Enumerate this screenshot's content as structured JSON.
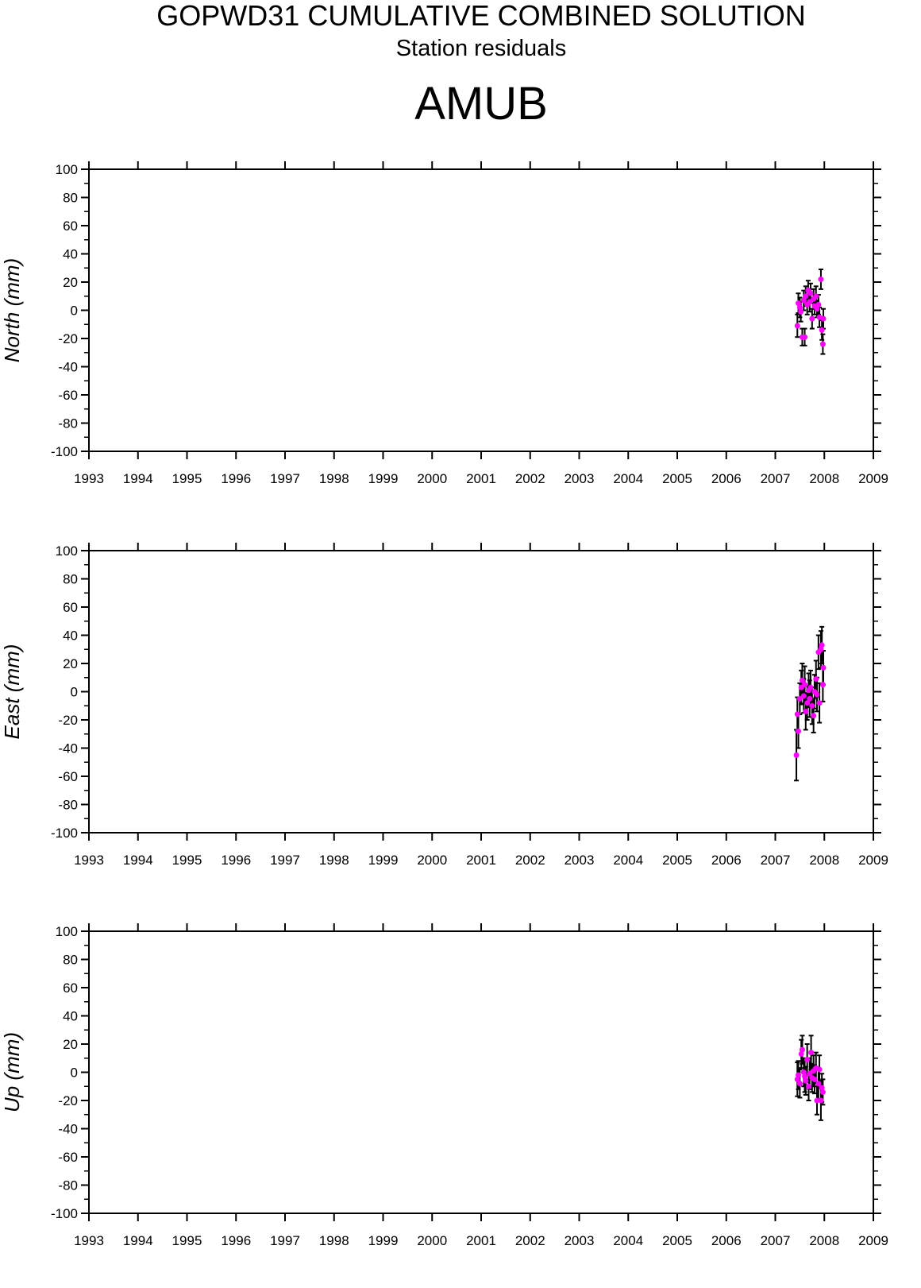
{
  "header": {
    "title": "GOPWD31 CUMULATIVE COMBINED SOLUTION",
    "subtitle": "Station residuals",
    "station": "AMUB"
  },
  "chart_data": [
    {
      "type": "scatter",
      "ylabel": "North (mm)",
      "color": "#ff00ff",
      "error_color": "#000000",
      "xlim": [
        1993,
        2009
      ],
      "xticks": [
        1993,
        1994,
        1995,
        1996,
        1997,
        1998,
        1999,
        2000,
        2001,
        2002,
        2003,
        2004,
        2005,
        2006,
        2007,
        2008,
        2009
      ],
      "ylim": [
        -100,
        100
      ],
      "yticks": [
        -100,
        -80,
        -60,
        -40,
        -20,
        0,
        20,
        40,
        60,
        80,
        100
      ],
      "x": [
        2007.45,
        2007.47,
        2007.5,
        2007.52,
        2007.55,
        2007.58,
        2007.6,
        2007.62,
        2007.65,
        2007.67,
        2007.7,
        2007.72,
        2007.75,
        2007.78,
        2007.8,
        2007.83,
        2007.85,
        2007.88,
        2007.9,
        2007.93,
        2007.95,
        2007.97,
        2007.98
      ],
      "values": [
        -11,
        5,
        2,
        -1,
        -19,
        7,
        -19,
        10,
        4,
        14,
        6,
        12,
        -6,
        8,
        3,
        10,
        1,
        4,
        -5,
        22,
        -14,
        -24,
        -6
      ],
      "errors": [
        8,
        7,
        7,
        7,
        6,
        7,
        6,
        7,
        7,
        7,
        7,
        7,
        7,
        7,
        6,
        7,
        6,
        7,
        7,
        7,
        7,
        7,
        7
      ]
    },
    {
      "type": "scatter",
      "ylabel": "East (mm)",
      "color": "#ff00ff",
      "error_color": "#000000",
      "xlim": [
        1993,
        2009
      ],
      "xticks": [
        1993,
        1994,
        1995,
        1996,
        1997,
        1998,
        1999,
        2000,
        2001,
        2002,
        2003,
        2004,
        2005,
        2006,
        2007,
        2008,
        2009
      ],
      "ylim": [
        -100,
        100
      ],
      "yticks": [
        -100,
        -80,
        -60,
        -40,
        -20,
        0,
        20,
        40,
        60,
        80,
        100
      ],
      "x": [
        2007.43,
        2007.45,
        2007.47,
        2007.5,
        2007.53,
        2007.55,
        2007.58,
        2007.6,
        2007.62,
        2007.65,
        2007.68,
        2007.7,
        2007.72,
        2007.75,
        2007.78,
        2007.8,
        2007.83,
        2007.85,
        2007.88,
        2007.9,
        2007.93,
        2007.95,
        2007.97,
        2007.98
      ],
      "values": [
        -45,
        -16,
        -28,
        -5,
        3,
        8,
        -3,
        5,
        -14,
        -8,
        1,
        -5,
        3,
        -10,
        -17,
        0,
        9,
        -2,
        28,
        -8,
        30,
        33,
        5,
        17
      ],
      "errors": [
        18,
        12,
        12,
        11,
        12,
        12,
        12,
        13,
        13,
        12,
        12,
        13,
        12,
        13,
        12,
        12,
        13,
        12,
        12,
        14,
        13,
        13,
        12,
        12
      ]
    },
    {
      "type": "scatter",
      "ylabel": "Up (mm)",
      "color": "#ff00ff",
      "error_color": "#000000",
      "xlim": [
        1993,
        2009
      ],
      "xticks": [
        1993,
        1994,
        1995,
        1996,
        1997,
        1998,
        1999,
        2000,
        2001,
        2002,
        2003,
        2004,
        2005,
        2006,
        2007,
        2008,
        2009
      ],
      "ylim": [
        -100,
        100
      ],
      "yticks": [
        -100,
        -80,
        -60,
        -40,
        -20,
        0,
        20,
        40,
        60,
        80,
        100
      ],
      "x": [
        2007.45,
        2007.47,
        2007.5,
        2007.53,
        2007.55,
        2007.58,
        2007.6,
        2007.62,
        2007.65,
        2007.68,
        2007.7,
        2007.73,
        2007.75,
        2007.78,
        2007.8,
        2007.83,
        2007.85,
        2007.88,
        2007.9,
        2007.93,
        2007.95,
        2007.97
      ],
      "values": [
        -5,
        -2,
        -8,
        13,
        16,
        0,
        -3,
        -6,
        9,
        -10,
        -1,
        14,
        -4,
        1,
        -5,
        3,
        -20,
        -8,
        2,
        -20,
        -11,
        -14
      ],
      "errors": [
        12,
        10,
        10,
        10,
        10,
        10,
        11,
        10,
        11,
        10,
        11,
        12,
        10,
        11,
        10,
        11,
        10,
        11,
        10,
        14,
        10,
        9
      ]
    }
  ]
}
